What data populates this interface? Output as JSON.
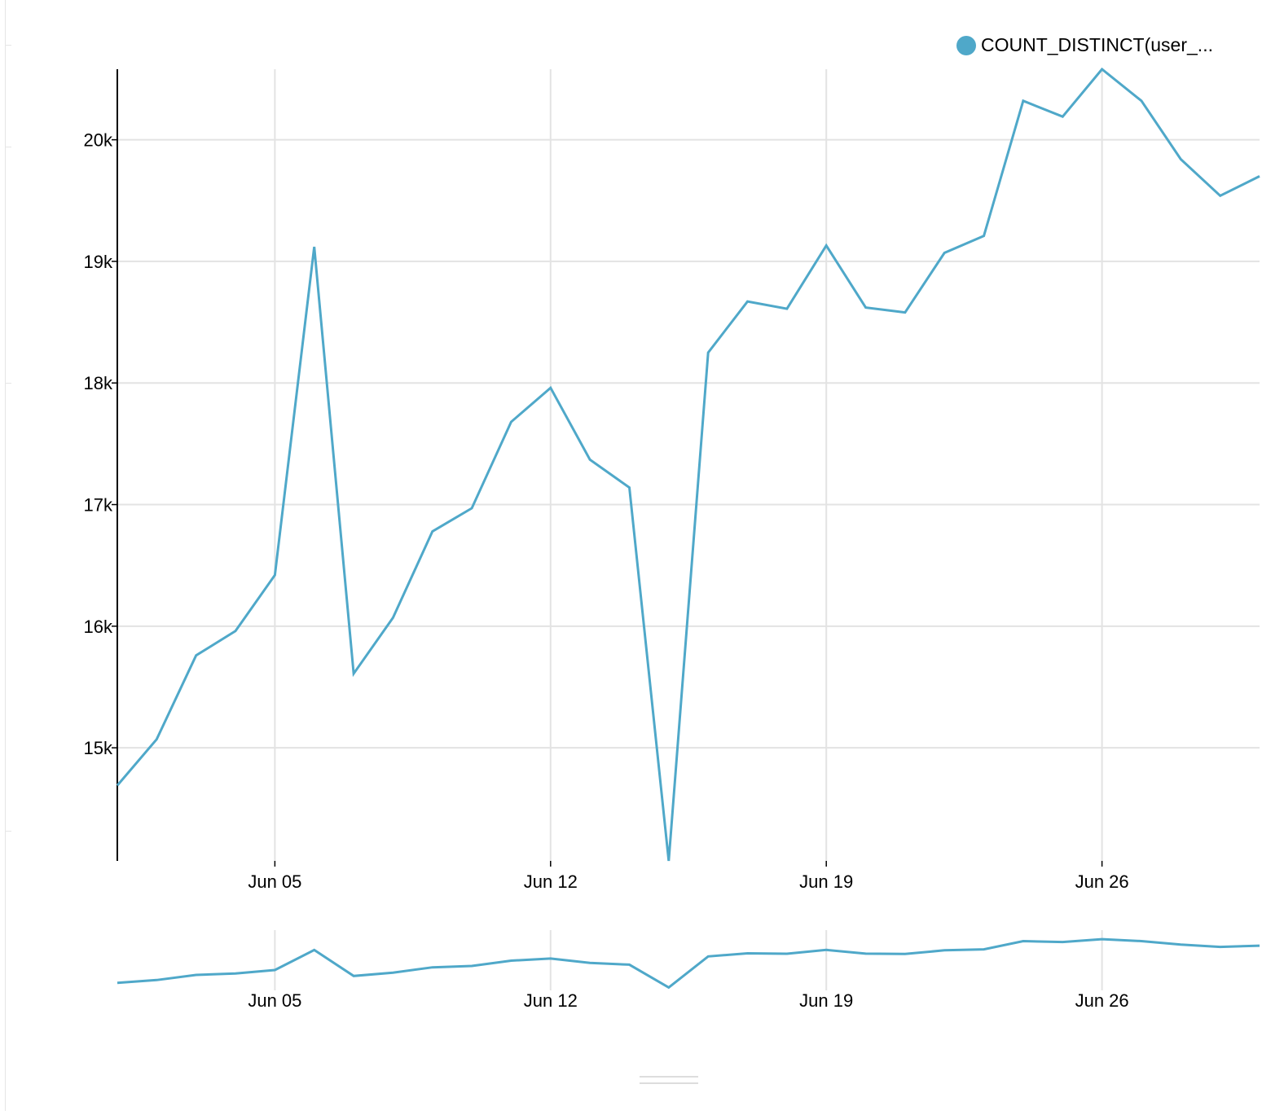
{
  "chart_data": {
    "type": "line",
    "legend": {
      "label": "COUNT_DISTINCT(user_...",
      "position": "top-right"
    },
    "series": [
      {
        "name": "COUNT_DISTINCT(user_...",
        "color": "#4fa8c9",
        "x": [
          "2017-06-01",
          "2017-06-02",
          "2017-06-03",
          "2017-06-04",
          "2017-06-05",
          "2017-06-06",
          "2017-06-07",
          "2017-06-08",
          "2017-06-09",
          "2017-06-10",
          "2017-06-11",
          "2017-06-12",
          "2017-06-13",
          "2017-06-14",
          "2017-06-15",
          "2017-06-16",
          "2017-06-17",
          "2017-06-18",
          "2017-06-19",
          "2017-06-20",
          "2017-06-21",
          "2017-06-22",
          "2017-06-23",
          "2017-06-24",
          "2017-06-25",
          "2017-06-26",
          "2017-06-27",
          "2017-06-28",
          "2017-06-29",
          "2017-06-30"
        ],
        "values": [
          14690,
          15070,
          15760,
          15960,
          16420,
          19120,
          15610,
          16070,
          16780,
          16970,
          17680,
          17960,
          17370,
          17140,
          14070,
          18250,
          18670,
          18610,
          19130,
          18620,
          18580,
          19070,
          19210,
          20320,
          20190,
          20580,
          20320,
          19840,
          19540,
          19700
        ]
      }
    ],
    "x_tick_labels": [
      "Jun 05",
      "Jun 12",
      "Jun 19",
      "Jun 26"
    ],
    "x_tick_dates": [
      "2017-06-05",
      "2017-06-12",
      "2017-06-19",
      "2017-06-26"
    ],
    "y_tick_labels": [
      "15k",
      "16k",
      "17k",
      "18k",
      "19k",
      "20k"
    ],
    "y_tick_values": [
      15000,
      16000,
      17000,
      18000,
      19000,
      20000
    ],
    "xlim": [
      "2017-06-01",
      "2017-06-30"
    ],
    "ylim": [
      14070,
      20580
    ],
    "grid": true,
    "gridline_color": "#e3e3e3",
    "axis_color": "#000000",
    "overview": {
      "present": true,
      "x_tick_labels": [
        "Jun 05",
        "Jun 12",
        "Jun 19",
        "Jun 26"
      ]
    }
  }
}
